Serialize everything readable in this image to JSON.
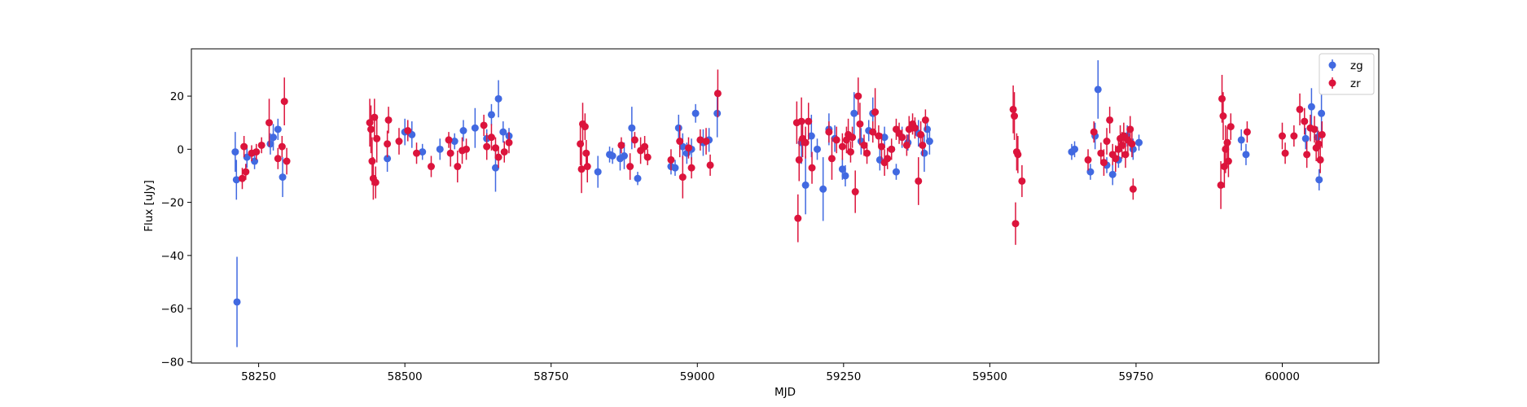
{
  "chart_data": {
    "type": "scatter",
    "title": "",
    "xlabel": "MJD",
    "ylabel": "Flux [uJy]",
    "xlim": [
      58135,
      60165
    ],
    "ylim": [
      -80.5,
      37.8
    ],
    "xticks": [
      58250,
      58500,
      58750,
      59000,
      59250,
      59500,
      59750,
      60000
    ],
    "yticks": [
      -80,
      -60,
      -40,
      -20,
      0,
      20
    ],
    "grid": false,
    "legend_position": "top-right",
    "series": [
      {
        "name": "zg",
        "color": "#4169e1",
        "points": [
          [
            58210,
            -1,
            7.5
          ],
          [
            58212,
            -11.5,
            7.5
          ],
          [
            58213,
            -57.5,
            17
          ],
          [
            58230,
            -3,
            4
          ],
          [
            58243,
            -4.5,
            3
          ],
          [
            58270,
            2,
            4
          ],
          [
            58275,
            4.5,
            5
          ],
          [
            58283,
            7.5,
            4
          ],
          [
            58291,
            -10.5,
            7.5
          ],
          [
            58470,
            -3.5,
            5
          ],
          [
            58500,
            6.5,
            5
          ],
          [
            58512,
            5.5,
            5
          ],
          [
            58530,
            -1,
            3
          ],
          [
            58560,
            0,
            4
          ],
          [
            58585,
            3,
            3
          ],
          [
            58600,
            7,
            4
          ],
          [
            58620,
            8,
            7.5
          ],
          [
            58640,
            4,
            3.5
          ],
          [
            58648,
            13,
            4
          ],
          [
            58655,
            -7,
            9
          ],
          [
            58660,
            19,
            7
          ],
          [
            58668,
            6.5,
            4
          ],
          [
            58678,
            5,
            3
          ],
          [
            58830,
            -8.5,
            6
          ],
          [
            58850,
            -2,
            3
          ],
          [
            58855,
            -2.5,
            3
          ],
          [
            58868,
            -3.5,
            4.5
          ],
          [
            58875,
            -2.5,
            5
          ],
          [
            58888,
            8,
            8
          ],
          [
            58898,
            -11,
            2.5
          ],
          [
            58955,
            -6.5,
            3
          ],
          [
            58962,
            -7,
            3
          ],
          [
            58968,
            8,
            5
          ],
          [
            58975,
            1,
            5
          ],
          [
            58982,
            -1.5,
            4
          ],
          [
            58990,
            0,
            4
          ],
          [
            58997,
            13.5,
            3.5
          ],
          [
            59010,
            2.5,
            5
          ],
          [
            59020,
            3.5,
            4.5
          ],
          [
            59034,
            13.5,
            9
          ],
          [
            59178,
            2.5,
            8
          ],
          [
            59185,
            -13.5,
            11
          ],
          [
            59195,
            5,
            8
          ],
          [
            59205,
            0,
            4
          ],
          [
            59215,
            -15,
            12
          ],
          [
            59225,
            7.5,
            6
          ],
          [
            59235,
            4,
            5
          ],
          [
            59248,
            -7.5,
            4
          ],
          [
            59253,
            -10,
            4
          ],
          [
            59268,
            13.5,
            8
          ],
          [
            59280,
            3,
            5
          ],
          [
            59293,
            7,
            4
          ],
          [
            59300,
            13.5,
            6
          ],
          [
            59312,
            -4,
            4
          ],
          [
            59320,
            4.5,
            4
          ],
          [
            59332,
            0,
            3
          ],
          [
            59340,
            -8.5,
            3
          ],
          [
            59350,
            4.5,
            4
          ],
          [
            59360,
            2.5,
            3
          ],
          [
            59378,
            6,
            5
          ],
          [
            59388,
            -1.5,
            7
          ],
          [
            59393,
            7.5,
            4
          ],
          [
            59397,
            3,
            5
          ],
          [
            59640,
            -1,
            3
          ],
          [
            59645,
            0,
            3
          ],
          [
            59672,
            -8.5,
            3
          ],
          [
            59680,
            5,
            5
          ],
          [
            59685,
            22.5,
            11
          ],
          [
            59700,
            -6,
            3
          ],
          [
            59710,
            -9.5,
            4
          ],
          [
            59720,
            -4,
            3
          ],
          [
            59735,
            5,
            4
          ],
          [
            59745,
            0,
            4
          ],
          [
            59755,
            2.5,
            3
          ],
          [
            59930,
            3.5,
            4
          ],
          [
            59938,
            -2,
            4
          ],
          [
            60040,
            4,
            4
          ],
          [
            60050,
            16,
            7
          ],
          [
            60060,
            4.5,
            4
          ],
          [
            60063,
            -11.5,
            4
          ],
          [
            60067,
            13.5,
            7
          ]
        ]
      },
      {
        "name": "zr",
        "color": "#dc143c",
        "points": [
          [
            58222,
            -11,
            4
          ],
          [
            58225,
            1,
            4
          ],
          [
            58228,
            -8.5,
            3
          ],
          [
            58238,
            -1.5,
            3
          ],
          [
            58246,
            -1,
            3
          ],
          [
            58255,
            1.5,
            3
          ],
          [
            58268,
            10,
            9
          ],
          [
            58283,
            -3.5,
            4
          ],
          [
            58290,
            1,
            4
          ],
          [
            58294,
            18,
            9
          ],
          [
            58298,
            -4.5,
            5
          ],
          [
            58440,
            10,
            9
          ],
          [
            58442,
            7.5,
            9
          ],
          [
            58444,
            -4.5,
            9
          ],
          [
            58446,
            -11,
            8
          ],
          [
            58448,
            12,
            7
          ],
          [
            58450,
            -12.5,
            6
          ],
          [
            58452,
            4,
            9
          ],
          [
            58470,
            2,
            5
          ],
          [
            58472,
            11,
            5
          ],
          [
            58490,
            3,
            5
          ],
          [
            58505,
            7,
            4
          ],
          [
            58520,
            -1.5,
            4
          ],
          [
            58545,
            -6.5,
            4
          ],
          [
            58575,
            3.5,
            3
          ],
          [
            58578,
            -1.5,
            5
          ],
          [
            58590,
            -6.5,
            6
          ],
          [
            58598,
            -0.5,
            5
          ],
          [
            58605,
            0,
            4
          ],
          [
            58635,
            9,
            4
          ],
          [
            58640,
            1,
            5
          ],
          [
            58648,
            4.5,
            5
          ],
          [
            58655,
            0.5,
            4
          ],
          [
            58660,
            -3,
            4
          ],
          [
            58670,
            -1,
            4
          ],
          [
            58678,
            2.5,
            4
          ],
          [
            58800,
            2,
            8
          ],
          [
            58802,
            -7.5,
            9
          ],
          [
            58804,
            9.5,
            8
          ],
          [
            58808,
            8.5,
            5
          ],
          [
            58810,
            -1.5,
            5
          ],
          [
            58812,
            -6.5,
            6
          ],
          [
            58870,
            1.5,
            3
          ],
          [
            58885,
            -6.5,
            5
          ],
          [
            58893,
            3.5,
            3
          ],
          [
            58903,
            -0.5,
            5
          ],
          [
            58910,
            1,
            4
          ],
          [
            58915,
            -3,
            3
          ],
          [
            58955,
            -4,
            4
          ],
          [
            58970,
            3,
            6
          ],
          [
            58975,
            -10.5,
            8
          ],
          [
            58985,
            0.5,
            4
          ],
          [
            58990,
            -7,
            4
          ],
          [
            59005,
            3.5,
            4
          ],
          [
            59015,
            3,
            5
          ],
          [
            59022,
            -6,
            4
          ],
          [
            59035,
            21,
            9
          ],
          [
            59170,
            10,
            8
          ],
          [
            59172,
            -26,
            9
          ],
          [
            59174,
            -4,
            8
          ],
          [
            59178,
            10.5,
            9
          ],
          [
            59180,
            4,
            7
          ],
          [
            59185,
            2.5,
            6
          ],
          [
            59190,
            10.5,
            7
          ],
          [
            59196,
            -7,
            6
          ],
          [
            59225,
            6.5,
            4
          ],
          [
            59230,
            -3.5,
            8
          ],
          [
            59238,
            3.5,
            5
          ],
          [
            59248,
            1,
            5
          ],
          [
            59255,
            3.5,
            5
          ],
          [
            59258,
            5.5,
            6
          ],
          [
            59262,
            -1,
            4
          ],
          [
            59265,
            4.5,
            4
          ],
          [
            59270,
            -16,
            8
          ],
          [
            59275,
            20,
            7
          ],
          [
            59278,
            9.5,
            8
          ],
          [
            59285,
            1.5,
            4
          ],
          [
            59290,
            -1.5,
            4
          ],
          [
            59300,
            6.5,
            4
          ],
          [
            59304,
            14,
            9
          ],
          [
            59310,
            5,
            4
          ],
          [
            59315,
            1,
            5
          ],
          [
            59320,
            -5,
            5
          ],
          [
            59325,
            -3.5,
            4
          ],
          [
            59332,
            0,
            4
          ],
          [
            59340,
            7.5,
            4
          ],
          [
            59345,
            6,
            4
          ],
          [
            59350,
            4.5,
            3
          ],
          [
            59358,
            1.5,
            4
          ],
          [
            59362,
            7.5,
            5
          ],
          [
            59368,
            9.5,
            4
          ],
          [
            59372,
            8,
            4
          ],
          [
            59378,
            -12,
            9
          ],
          [
            59382,
            5.5,
            5
          ],
          [
            59385,
            1.5,
            4
          ],
          [
            59390,
            11,
            4
          ],
          [
            59540,
            15,
            9
          ],
          [
            59542,
            12.5,
            9
          ],
          [
            59544,
            -28,
            8
          ],
          [
            59546,
            -1,
            7
          ],
          [
            59548,
            -2,
            7
          ],
          [
            59555,
            -12,
            6
          ],
          [
            59668,
            -4,
            4
          ],
          [
            59678,
            6.5,
            4
          ],
          [
            59690,
            -1.5,
            4
          ],
          [
            59695,
            -5,
            5
          ],
          [
            59700,
            3,
            5
          ],
          [
            59705,
            11,
            5
          ],
          [
            59710,
            -2,
            4
          ],
          [
            59715,
            -3.5,
            5
          ],
          [
            59720,
            0,
            4
          ],
          [
            59723,
            4,
            5
          ],
          [
            59726,
            1.5,
            5
          ],
          [
            59729,
            5,
            5
          ],
          [
            59732,
            -2,
            5
          ],
          [
            59736,
            3.5,
            5
          ],
          [
            59740,
            7.5,
            5
          ],
          [
            59743,
            2,
            5
          ],
          [
            59745,
            -15,
            4
          ],
          [
            59895,
            -13.5,
            9
          ],
          [
            59897,
            19,
            9
          ],
          [
            59899,
            12.5,
            9
          ],
          [
            59901,
            -6.5,
            8
          ],
          [
            59903,
            0,
            9
          ],
          [
            59906,
            2.5,
            6
          ],
          [
            59908,
            -4.5,
            6
          ],
          [
            59912,
            8.5,
            5
          ],
          [
            59940,
            6.5,
            4
          ],
          [
            60000,
            5,
            5
          ],
          [
            60005,
            -1.5,
            4
          ],
          [
            60020,
            5,
            4
          ],
          [
            60030,
            15,
            6
          ],
          [
            60038,
            10.5,
            5
          ],
          [
            60042,
            -2,
            5
          ],
          [
            60048,
            8,
            5
          ],
          [
            60055,
            7.5,
            5
          ],
          [
            60058,
            0.5,
            5
          ],
          [
            60062,
            2,
            5
          ],
          [
            60065,
            -4,
            5
          ],
          [
            60068,
            5.5,
            5
          ]
        ]
      }
    ]
  }
}
